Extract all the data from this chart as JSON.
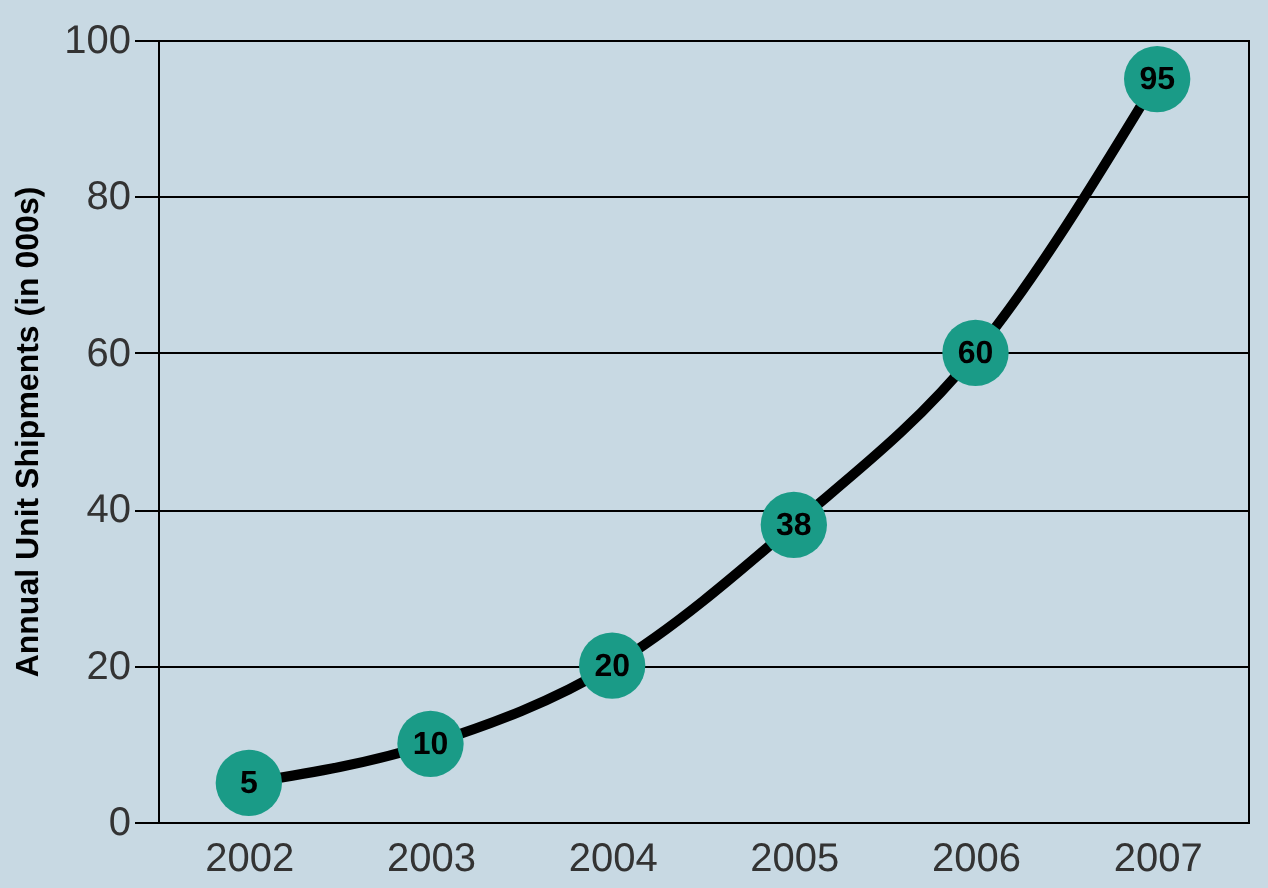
{
  "chart_data": {
    "type": "line",
    "ylabel": "Annual Unit Shipments (in 000s)",
    "categories": [
      "2002",
      "2003",
      "2004",
      "2005",
      "2006",
      "2007"
    ],
    "series": [
      {
        "color": "#000000",
        "colors": [
          "#1a9b87",
          "#1a9b87",
          "#1a9b87",
          "#1a9b87",
          "#1a9b87",
          "#1a9b87"
        ],
        "values": [
          5,
          10,
          20,
          38,
          60,
          95
        ]
      }
    ],
    "ylim": [
      0,
      100
    ],
    "yticks": [
      0,
      20,
      40,
      60,
      80,
      100
    ],
    "grid": "y",
    "marker": "circle",
    "line_style": "solid",
    "data_labels": true
  }
}
